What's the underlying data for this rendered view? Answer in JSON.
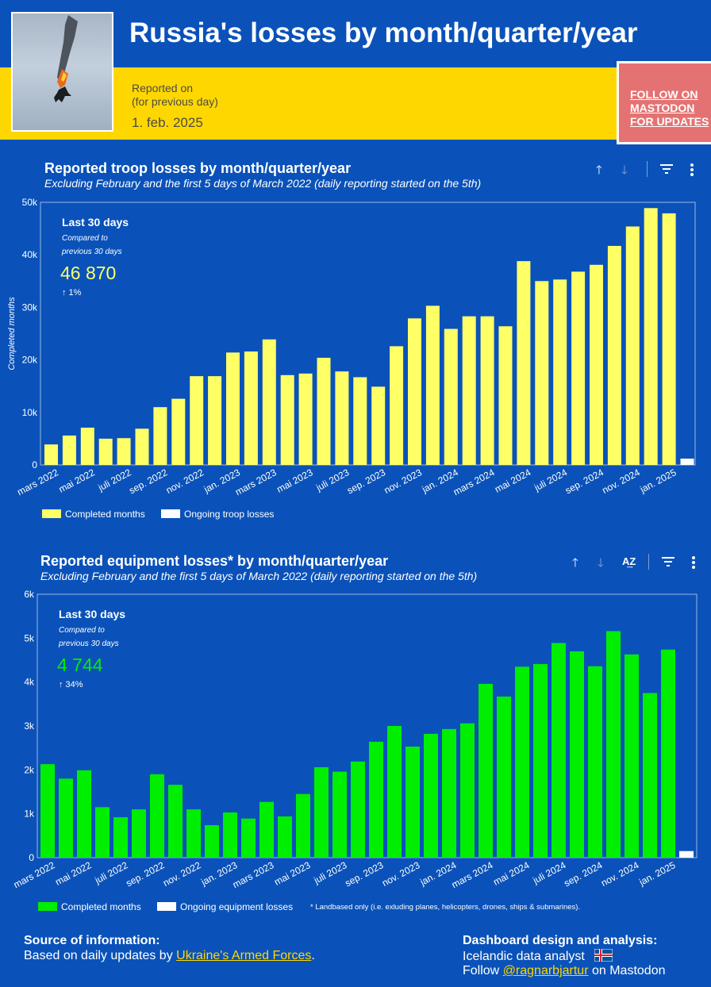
{
  "header": {
    "title": "Russia's losses by month/quarter/year",
    "reported_label_1": "Reported on",
    "reported_label_2": "(for previous day)",
    "date": "1. feb. 2025",
    "follow_1": "FOLLOW ON",
    "follow_2": "MASTODON",
    "follow_3": "FOR UPDATES"
  },
  "colors": {
    "background": "#0a52b9",
    "band": "#ffd700",
    "troop_bar": "#ffff66",
    "equip_bar": "#00ee00",
    "ongoing": "#ffffff",
    "follow_box": "#e57272"
  },
  "chart_data": [
    {
      "type": "bar",
      "title": "Reported troop losses by month/quarter/year",
      "subtitle": "Excluding February and the first 5 days of March 2022 (daily reporting started on the 5th)",
      "xlabel": "",
      "ylabel": "Completed months",
      "ylim": [
        0,
        50000
      ],
      "yticks": [
        "0",
        "10k",
        "20k",
        "30k",
        "40k",
        "50k"
      ],
      "categories": [
        "mars 2022",
        "apr. 2022",
        "mai 2022",
        "jun. 2022",
        "juli 2022",
        "aug. 2022",
        "sep. 2022",
        "okt. 2022",
        "nov. 2022",
        "des. 2022",
        "jan. 2023",
        "feb. 2023",
        "mars 2023",
        "apr. 2023",
        "mai 2023",
        "jun. 2023",
        "juli 2023",
        "aug. 2023",
        "sep. 2023",
        "okt. 2023",
        "nov. 2023",
        "des. 2023",
        "jan. 2024",
        "feb. 2024",
        "mars 2024",
        "apr. 2024",
        "mai 2024",
        "jun. 2024",
        "juli 2024",
        "aug. 2024",
        "sep. 2024",
        "okt. 2024",
        "nov. 2024",
        "des. 2024",
        "jan. 2025",
        "feb. 2025"
      ],
      "x_tick_labels": [
        "mars 2022",
        "mai 2022",
        "juli 2022",
        "sep. 2022",
        "nov. 2022",
        "jan. 2023",
        "mars 2023",
        "mai 2023",
        "juli 2023",
        "sep. 2023",
        "nov. 2023",
        "jan. 2024",
        "mars 2024",
        "mai 2024",
        "juli 2024",
        "sep. 2024",
        "nov. 2024",
        "jan. 2025"
      ],
      "series": [
        {
          "name": "Completed months",
          "values": [
            3900,
            5600,
            7100,
            5000,
            5100,
            6900,
            11000,
            12600,
            16900,
            16900,
            21400,
            21600,
            23900,
            17100,
            17400,
            20400,
            17800,
            16700,
            14900,
            22600,
            27900,
            30300,
            25900,
            28300,
            28300,
            26400,
            38800,
            35000,
            35300,
            36800,
            38100,
            41700,
            45400,
            48900,
            47900,
            null
          ]
        },
        {
          "name": "Ongoing troop losses",
          "values": [
            null,
            null,
            null,
            null,
            null,
            null,
            null,
            null,
            null,
            null,
            null,
            null,
            null,
            null,
            null,
            null,
            null,
            null,
            null,
            null,
            null,
            null,
            null,
            null,
            null,
            null,
            null,
            null,
            null,
            null,
            null,
            null,
            null,
            null,
            null,
            1200
          ]
        }
      ],
      "kpi": {
        "title": "Last 30 days",
        "caption_1": "Compared to",
        "caption_2": "previous 30 days",
        "value": "46 870",
        "change": "↑ 1%"
      },
      "grid": false,
      "legend": "bottom-left"
    },
    {
      "type": "bar",
      "title": "Reported equipment losses* by month/quarter/year",
      "subtitle": "Excluding February and the first 5 days of March 2022 (daily reporting started on the 5th)",
      "xlabel": "",
      "ylabel": "",
      "ylim": [
        0,
        6000
      ],
      "yticks": [
        "0",
        "1k",
        "2k",
        "3k",
        "4k",
        "5k",
        "6k"
      ],
      "categories": [
        "mars 2022",
        "apr. 2022",
        "mai 2022",
        "jun. 2022",
        "juli 2022",
        "aug. 2022",
        "sep. 2022",
        "okt. 2022",
        "nov. 2022",
        "des. 2022",
        "jan. 2023",
        "feb. 2023",
        "mars 2023",
        "apr. 2023",
        "mai 2023",
        "jun. 2023",
        "juli 2023",
        "aug. 2023",
        "sep. 2023",
        "okt. 2023",
        "nov. 2023",
        "des. 2023",
        "jan. 2024",
        "feb. 2024",
        "mars 2024",
        "apr. 2024",
        "mai 2024",
        "jun. 2024",
        "juli 2024",
        "aug. 2024",
        "sep. 2024",
        "okt. 2024",
        "nov. 2024",
        "des. 2024",
        "jan. 2025",
        "feb. 2025"
      ],
      "x_tick_labels": [
        "mars 2022",
        "mai 2022",
        "juli 2022",
        "sep. 2022",
        "nov. 2022",
        "jan. 2023",
        "mars 2023",
        "mai 2023",
        "juli 2023",
        "sep. 2023",
        "nov. 2023",
        "jan. 2024",
        "mars 2024",
        "mai 2024",
        "juli 2024",
        "sep. 2024",
        "nov. 2024",
        "jan. 2025"
      ],
      "series": [
        {
          "name": "Completed months",
          "values": [
            2130,
            1800,
            1990,
            1150,
            920,
            1100,
            1900,
            1660,
            1100,
            740,
            1030,
            890,
            1270,
            940,
            1450,
            2060,
            1960,
            2190,
            2640,
            3000,
            2530,
            2820,
            2930,
            3060,
            3960,
            3670,
            4350,
            4410,
            4890,
            4700,
            4360,
            5160,
            4630,
            3750,
            4740,
            null
          ]
        },
        {
          "name": "Ongoing equipment losses",
          "values": [
            null,
            null,
            null,
            null,
            null,
            null,
            null,
            null,
            null,
            null,
            null,
            null,
            null,
            null,
            null,
            null,
            null,
            null,
            null,
            null,
            null,
            null,
            null,
            null,
            null,
            null,
            null,
            null,
            null,
            null,
            null,
            null,
            null,
            null,
            null,
            150
          ]
        }
      ],
      "kpi": {
        "title": "Last 30 days",
        "caption_1": "Compared to",
        "caption_2": "previous 30 days",
        "value": "4 744",
        "change": "↑ 34%"
      },
      "footnote": "* Landbased only (i.e. exluding planes, helicopters, drones, ships & submarines).",
      "grid": false,
      "legend": "bottom-left"
    }
  ],
  "toolbar": {
    "sort_asc_icon": "arrow-up-icon",
    "sort_desc_icon": "arrow-down-icon",
    "sort_alpha_icon": "sort-az-icon",
    "filter_icon": "filter-icon",
    "more_icon": "more-vert-icon"
  },
  "footer": {
    "source_heading": "Source of information:",
    "source_text": "Based on daily updates by ",
    "source_link": "Ukraine's Armed Forces",
    "source_end": ".",
    "design_heading": "Dashboard design and analysis:",
    "design_text": "Icelandic data analyst",
    "follow_text": "Follow ",
    "follow_link": "@ragnarbjartur",
    "follow_end": " on Mastodon"
  }
}
